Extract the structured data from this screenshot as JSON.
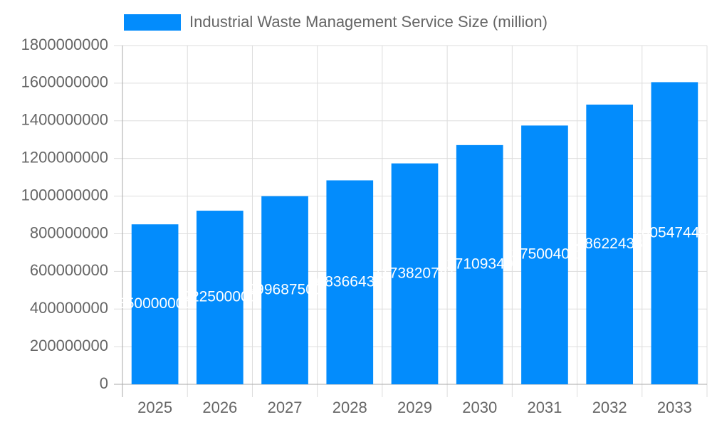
{
  "chart_data": {
    "type": "bar",
    "categories": [
      "2025",
      "2026",
      "2027",
      "2028",
      "2029",
      "2030",
      "2031",
      "2032",
      "2033"
    ],
    "series": [
      {
        "name": "Industrial Waste Management Service Size (million)",
        "color": "#038cfc",
        "values": [
          850000000,
          922500000,
          999687500,
          1083664375,
          1173820781,
          1271093400,
          1375004025,
          1486224389,
          1605474440
        ]
      }
    ],
    "ylim": [
      0,
      1800000000
    ],
    "yticks": [
      0,
      200000000,
      400000000,
      600000000,
      800000000,
      1000000000,
      1200000000,
      1400000000,
      1600000000,
      1800000000
    ],
    "grid": true,
    "legend": "top"
  }
}
